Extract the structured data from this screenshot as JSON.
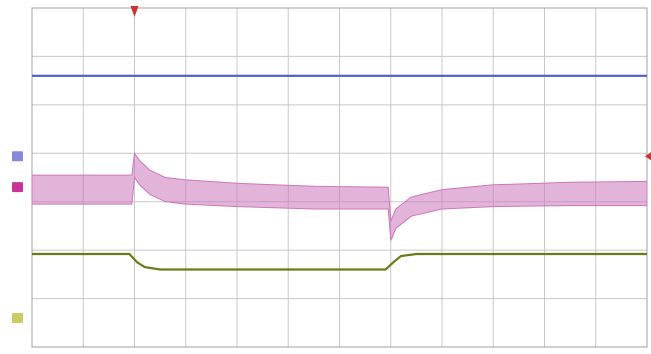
{
  "chart_data": {
    "type": "line",
    "title": "",
    "xlabel": "",
    "ylabel": "",
    "xlim": [
      0,
      12
    ],
    "ylim": [
      0,
      7
    ],
    "grid": true,
    "x_divisions": 12,
    "y_divisions": 7,
    "series": [
      {
        "color": "#4a5fc2",
        "x": [
          0,
          12
        ],
        "y": [
          5.6,
          5.6
        ]
      },
      {
        "color": "#cc77bb",
        "band": true,
        "x": [
          0,
          1.95,
          2.0,
          2.1,
          2.3,
          2.6,
          3.0,
          4.0,
          5.5,
          6.95,
          7.0,
          7.1,
          7.4,
          8.0,
          9.0,
          10.5,
          12
        ],
        "upper": [
          3.55,
          3.55,
          4.0,
          3.85,
          3.65,
          3.5,
          3.45,
          3.38,
          3.32,
          3.3,
          2.6,
          2.85,
          3.1,
          3.25,
          3.35,
          3.4,
          3.42
        ],
        "lower": [
          2.95,
          2.95,
          3.5,
          3.35,
          3.15,
          3.0,
          2.95,
          2.9,
          2.85,
          2.85,
          2.2,
          2.45,
          2.7,
          2.85,
          2.9,
          2.92,
          2.92
        ]
      },
      {
        "color": "#6b7a18",
        "x": [
          0,
          1.9,
          2.05,
          2.2,
          2.5,
          6.9,
          7.05,
          7.2,
          7.5,
          12
        ],
        "y": [
          1.92,
          1.92,
          1.75,
          1.65,
          1.6,
          1.6,
          1.75,
          1.88,
          1.92,
          1.92
        ]
      }
    ],
    "channel_markers": [
      {
        "color": "#8888dd",
        "y": 3.94
      },
      {
        "color": "#cc3399",
        "y": 3.3
      },
      {
        "color": "#cccc66",
        "y": 0.6
      }
    ],
    "trigger_marker": {
      "color": "#cc3333",
      "x": 2.0
    },
    "right_marker": {
      "color": "#cc3333",
      "y": 3.94
    }
  }
}
